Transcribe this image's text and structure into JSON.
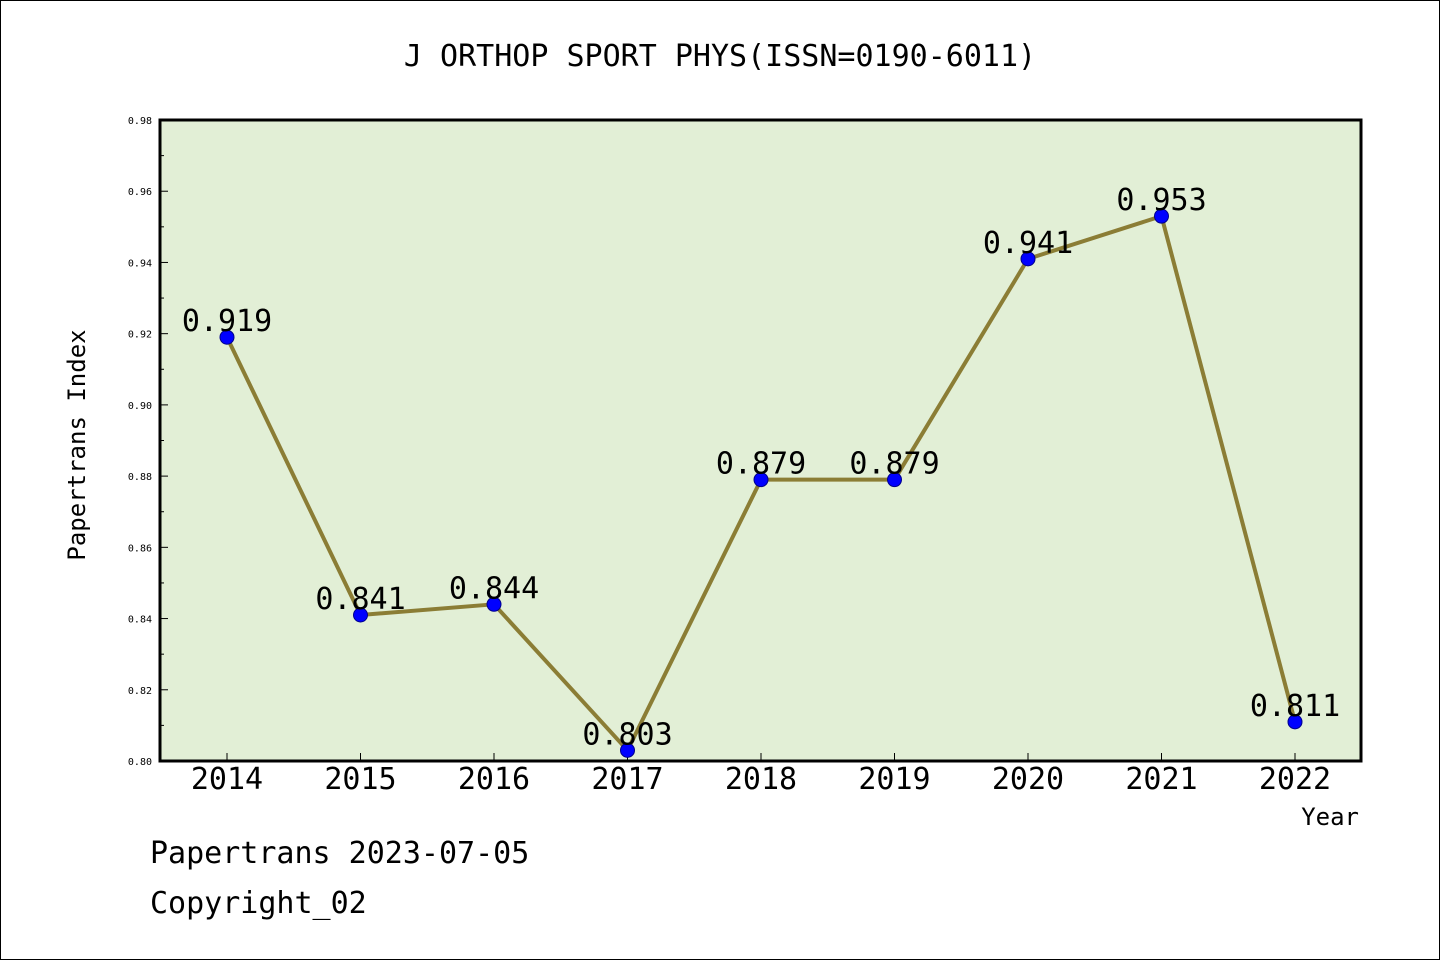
{
  "chart_data": {
    "type": "line",
    "title": "J ORTHOP SPORT PHYS(ISSN=0190-6011)",
    "xlabel": "Year",
    "ylabel": "Papertrans Index",
    "categories": [
      "2014",
      "2015",
      "2016",
      "2017",
      "2018",
      "2019",
      "2020",
      "2021",
      "2022"
    ],
    "values": [
      0.919,
      0.841,
      0.844,
      0.803,
      0.879,
      0.879,
      0.941,
      0.953,
      0.811
    ],
    "data_labels": [
      "0.919",
      "0.841",
      "0.844",
      "0.803",
      "0.879",
      "0.879",
      "0.941",
      "0.953",
      "0.811"
    ],
    "ylim": [
      0.8,
      0.98
    ],
    "yticks": [
      "0.80",
      "0.82",
      "0.84",
      "0.86",
      "0.88",
      "0.90",
      "0.92",
      "0.94",
      "0.96",
      "0.98"
    ],
    "grid": false,
    "colors": {
      "plot_background": "#e2efd6",
      "line": "#8b7d35",
      "marker": "#0000ff",
      "marker_edge": "#00008b"
    }
  },
  "footer": {
    "line1": "Papertrans 2023-07-05",
    "line2": "Copyright_02"
  }
}
